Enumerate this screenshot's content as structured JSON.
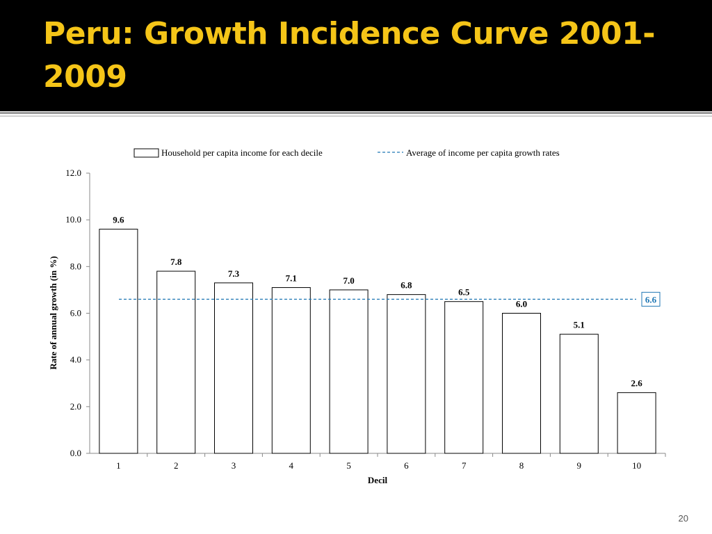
{
  "slide": {
    "title": "Peru: Growth Incidence Curve 2001-2009",
    "page_number": "20"
  },
  "colors": {
    "title_bar": "#000000",
    "title_text": "#f5c518",
    "bar_fill": "#ffffff",
    "bar_stroke": "#000000",
    "average_line": "#1f77b4"
  },
  "chart_data": {
    "type": "bar",
    "categories": [
      "1",
      "2",
      "3",
      "4",
      "5",
      "6",
      "7",
      "8",
      "9",
      "10"
    ],
    "series": [
      {
        "name": "Household per capita income for each decile",
        "values": [
          9.6,
          7.8,
          7.3,
          7.1,
          7.0,
          6.8,
          6.5,
          6.0,
          5.1,
          2.6
        ],
        "labels": [
          "9.6",
          "7.8",
          "7.3",
          "7.1",
          "7.0",
          "6.8",
          "6.5",
          "6.0",
          "5.1",
          "2.6"
        ]
      }
    ],
    "average": {
      "name": "Average of income per capita growth rates",
      "value": 6.6,
      "label": "6.6",
      "style": "dashed"
    },
    "xlabel": "Decil",
    "ylabel": "Rate of annual growth (in %)",
    "ylim": [
      0,
      12
    ],
    "yticks": [
      "0.0",
      "2.0",
      "4.0",
      "6.0",
      "8.0",
      "10.0",
      "12.0"
    ],
    "grid": false,
    "legend": "top"
  }
}
